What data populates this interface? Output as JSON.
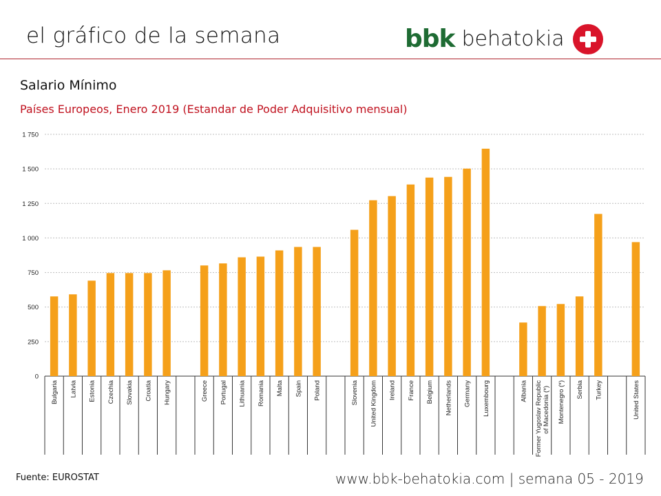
{
  "header": {
    "title": "el gráfico de la semana",
    "brand_bbk": "bbk",
    "brand_name": "behatokia",
    "brand_icon": "red-cross-circle-icon"
  },
  "footer": {
    "source": "Fuente: EUROSTAT",
    "url_and_week": "www.bbk-behatokia.com | semana 05 - 2019"
  },
  "colors": {
    "bar": "#f5a01a",
    "accent_red": "#c0121f",
    "brand_green": "#1e6b33",
    "header_rule": "#b0252e"
  },
  "chart_data": {
    "type": "bar",
    "title": "Salario Mínimo",
    "subtitle": "Países Europeos, Enero 2019 (Estandar de Poder Adquisitivo mensual)",
    "xlabel": "",
    "ylabel": "",
    "ylim": [
      0,
      1750
    ],
    "yticks": [
      0,
      250,
      500,
      750,
      1000,
      1250,
      1500,
      1750
    ],
    "ytick_labels": [
      "0",
      "250",
      "500",
      "750",
      "1 000",
      "1 250",
      "1 500",
      "1 750"
    ],
    "grid": true,
    "legend": "none",
    "groups": [
      {
        "categories": [
          "Bulgaria",
          "Latvia",
          "Estonia",
          "Czechia",
          "Slovakia",
          "Croatia",
          "Hungary"
        ],
        "values": [
          577,
          592,
          691,
          746,
          746,
          746,
          766
        ]
      },
      {
        "categories": [
          "Greece",
          "Portugal",
          "Lithuania",
          "Romania",
          "Malta",
          "Spain",
          "Poland"
        ],
        "values": [
          801,
          816,
          860,
          865,
          910,
          935,
          935
        ]
      },
      {
        "categories": [
          "Slovenia",
          "United Kingdom",
          "Ireland",
          "France",
          "Belgium",
          "Netherlands",
          "Germany",
          "Luxembourg"
        ],
        "values": [
          1059,
          1273,
          1303,
          1387,
          1437,
          1442,
          1502,
          1646
        ]
      },
      {
        "categories": [
          "Albania",
          "Former Yugoslav Republic of Macedonia (*)",
          "Montenegro (*)",
          "Serbia",
          "Turkey"
        ],
        "values": [
          388,
          507,
          522,
          577,
          1174
        ]
      },
      {
        "categories": [
          "United States"
        ],
        "values": [
          970
        ]
      }
    ]
  }
}
